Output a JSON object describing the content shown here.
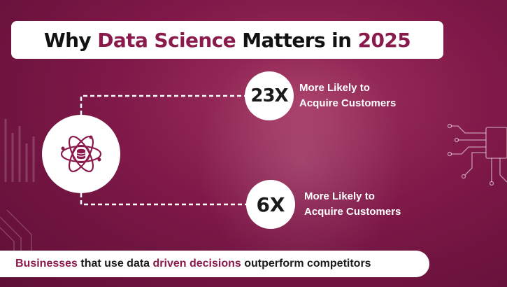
{
  "title": {
    "part1": "Why ",
    "highlight1": "Data Science",
    "part2": " Matters in ",
    "highlight2": "2025"
  },
  "hub": {
    "icon": "database-atom-icon"
  },
  "stats": [
    {
      "value": "23X",
      "line1": "More Likely to",
      "line2": "Acquire Customers"
    },
    {
      "value": "6X",
      "line1": "More Likely to",
      "line2": "Acquire Customers"
    }
  ],
  "footer": {
    "hl1": "Businesses",
    "t1": " that use data ",
    "hl2": "driven decisions",
    "t2": " outperform competitors"
  },
  "colors": {
    "background": "#7f1848",
    "accent": "#8a1a4c",
    "white": "#ffffff"
  }
}
